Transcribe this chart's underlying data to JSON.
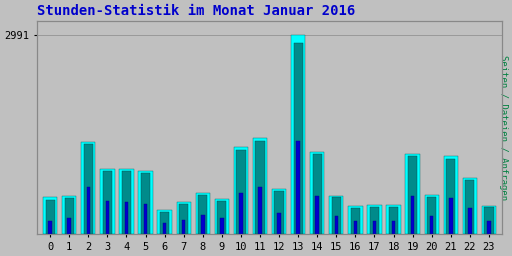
{
  "title": "Stunden-Statistik im Monat Januar 2016",
  "ylabel_right": "Seiten / Dateien / Anfragen",
  "y_tick_label": "2991",
  "y_max": 3200,
  "hours": [
    0,
    1,
    2,
    3,
    4,
    5,
    6,
    7,
    8,
    9,
    10,
    11,
    12,
    13,
    14,
    15,
    16,
    17,
    18,
    19,
    20,
    21,
    22,
    23
  ],
  "seiten": [
    560,
    570,
    1380,
    980,
    970,
    950,
    370,
    490,
    620,
    530,
    1300,
    1440,
    680,
    2991,
    1230,
    580,
    430,
    440,
    440,
    1200,
    590,
    1170,
    840,
    430
  ],
  "dateien": [
    510,
    540,
    1350,
    950,
    940,
    920,
    340,
    460,
    590,
    505,
    1260,
    1400,
    650,
    2870,
    1195,
    555,
    400,
    415,
    415,
    1165,
    560,
    1130,
    815,
    405
  ],
  "anfragen": [
    200,
    250,
    700,
    500,
    490,
    460,
    170,
    220,
    290,
    250,
    620,
    700,
    320,
    1400,
    580,
    280,
    200,
    205,
    200,
    570,
    270,
    540,
    400,
    200
  ],
  "color_seiten": "#00FFFF",
  "color_dateien": "#008B8B",
  "color_anfragen": "#0000CD",
  "background_color": "#C0C0C0",
  "plot_bg_color": "#C0C0C0",
  "title_color": "#0000CC",
  "ylabel_right_color": "#008040",
  "title_fontsize": 10,
  "axis_label_fontsize": 7.5
}
